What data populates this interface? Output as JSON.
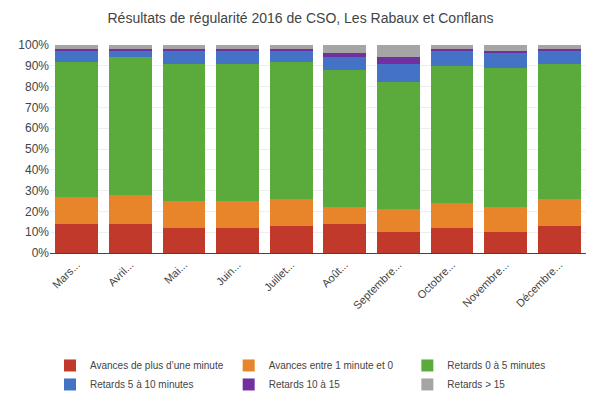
{
  "chart_data": {
    "type": "bar",
    "stacked": true,
    "title": "Résultats de régularité 2016 de CSO, Les Rabaux et Conflans",
    "categories": [
      "Mars...",
      "Avril...",
      "Mai...",
      "Juin...",
      "Juillet...",
      "Août...",
      "Septembre...",
      "Octobre...",
      "Novembre...",
      "Décembre..."
    ],
    "series": [
      {
        "name": "Avances de plus d’une minute",
        "color": "#c0392b",
        "values": [
          14,
          14,
          12,
          12,
          13,
          14,
          10,
          12,
          10,
          13
        ]
      },
      {
        "name": "Avances entre 1 minute et 0",
        "color": "#e8842a",
        "values": [
          13,
          14,
          13,
          13,
          13,
          8,
          11,
          12,
          12,
          13
        ]
      },
      {
        "name": "Retards 0 à 5 minutes",
        "color": "#5aaa3c",
        "values": [
          65,
          66,
          66,
          66,
          66,
          66,
          61,
          66,
          67,
          65
        ]
      },
      {
        "name": "Retards 5 à 10 minutes",
        "color": "#4472c4",
        "values": [
          5,
          3,
          6,
          6,
          5,
          6,
          9,
          7,
          7,
          6
        ]
      },
      {
        "name": "Retards 10 à 15",
        "color": "#7030a0",
        "values": [
          1,
          1,
          1,
          1,
          1,
          2,
          3,
          1,
          1,
          1
        ]
      },
      {
        "name": "Retards > 15",
        "color": "#a5a5a5",
        "values": [
          2,
          2,
          2,
          2,
          2,
          4,
          6,
          2,
          3,
          2
        ]
      }
    ],
    "ylim": [
      0,
      100
    ],
    "yticks": [
      {
        "value": 0,
        "label": "0%"
      },
      {
        "value": 10,
        "label": "10%"
      },
      {
        "value": 20,
        "label": "20%"
      },
      {
        "value": 30,
        "label": "30%"
      },
      {
        "value": 40,
        "label": "40%"
      },
      {
        "value": 50,
        "label": "50%"
      },
      {
        "value": 60,
        "label": "60%"
      },
      {
        "value": 70,
        "label": "70%"
      },
      {
        "value": 80,
        "label": "80%"
      },
      {
        "value": 90,
        "label": "90%"
      },
      {
        "value": 100,
        "label": "100%"
      }
    ],
    "grid": true,
    "legend": "bottom"
  }
}
